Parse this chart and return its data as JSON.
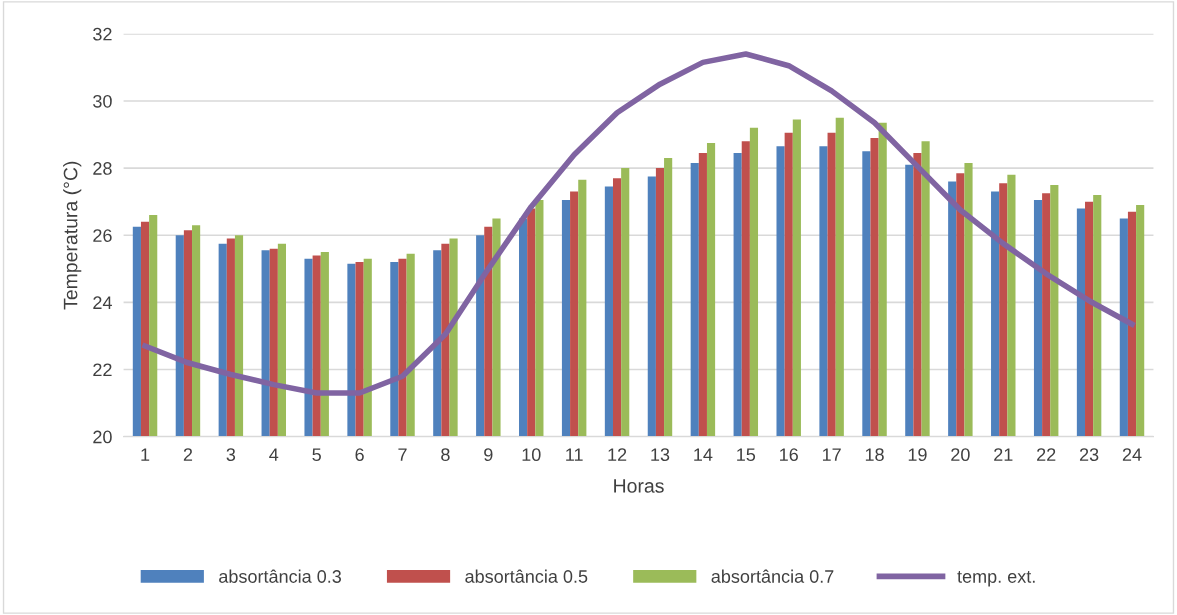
{
  "chart_data": {
    "type": "bar",
    "xlabel": "Horas",
    "ylabel": "Temperatura (°C)",
    "categories": [
      "1",
      "2",
      "3",
      "4",
      "5",
      "6",
      "7",
      "8",
      "9",
      "10",
      "11",
      "12",
      "13",
      "14",
      "15",
      "16",
      "17",
      "18",
      "19",
      "20",
      "21",
      "22",
      "23",
      "24"
    ],
    "series": [
      {
        "name": "absortância 0.3",
        "color": "#4f81bd",
        "values": [
          26.25,
          26.0,
          25.75,
          25.55,
          25.3,
          25.15,
          25.2,
          25.55,
          26.0,
          26.5,
          27.05,
          27.45,
          27.75,
          28.15,
          28.45,
          28.65,
          28.65,
          28.5,
          28.1,
          27.6,
          27.3,
          27.05,
          26.8,
          26.5
        ]
      },
      {
        "name": "absortância 0.5",
        "color": "#c0504d",
        "values": [
          26.4,
          26.15,
          25.9,
          25.6,
          25.4,
          25.2,
          25.3,
          25.75,
          26.25,
          26.8,
          27.3,
          27.7,
          28.0,
          28.45,
          28.8,
          29.05,
          29.05,
          28.9,
          28.45,
          27.85,
          27.55,
          27.25,
          27.0,
          26.7
        ]
      },
      {
        "name": "absortância 0.7",
        "color": "#9bbb59",
        "values": [
          26.6,
          26.3,
          26.0,
          25.75,
          25.5,
          25.3,
          25.45,
          25.9,
          26.5,
          27.05,
          27.65,
          28.0,
          28.3,
          28.75,
          29.2,
          29.45,
          29.5,
          29.35,
          28.8,
          28.15,
          27.8,
          27.5,
          27.2,
          26.9
        ]
      },
      {
        "name": "temp. ext.",
        "type": "line",
        "color": "#8064a2",
        "values": [
          22.7,
          22.2,
          21.85,
          21.55,
          21.3,
          21.3,
          21.8,
          23.05,
          25.0,
          26.85,
          28.4,
          29.65,
          30.5,
          31.15,
          31.4,
          31.05,
          30.3,
          29.35,
          28.05,
          26.75,
          25.75,
          24.85,
          24.05,
          23.35
        ]
      }
    ],
    "ylim": [
      20,
      32
    ],
    "yticks": [
      20,
      22,
      24,
      26,
      28,
      30,
      32
    ],
    "grid": "y",
    "legend": "bottom"
  }
}
